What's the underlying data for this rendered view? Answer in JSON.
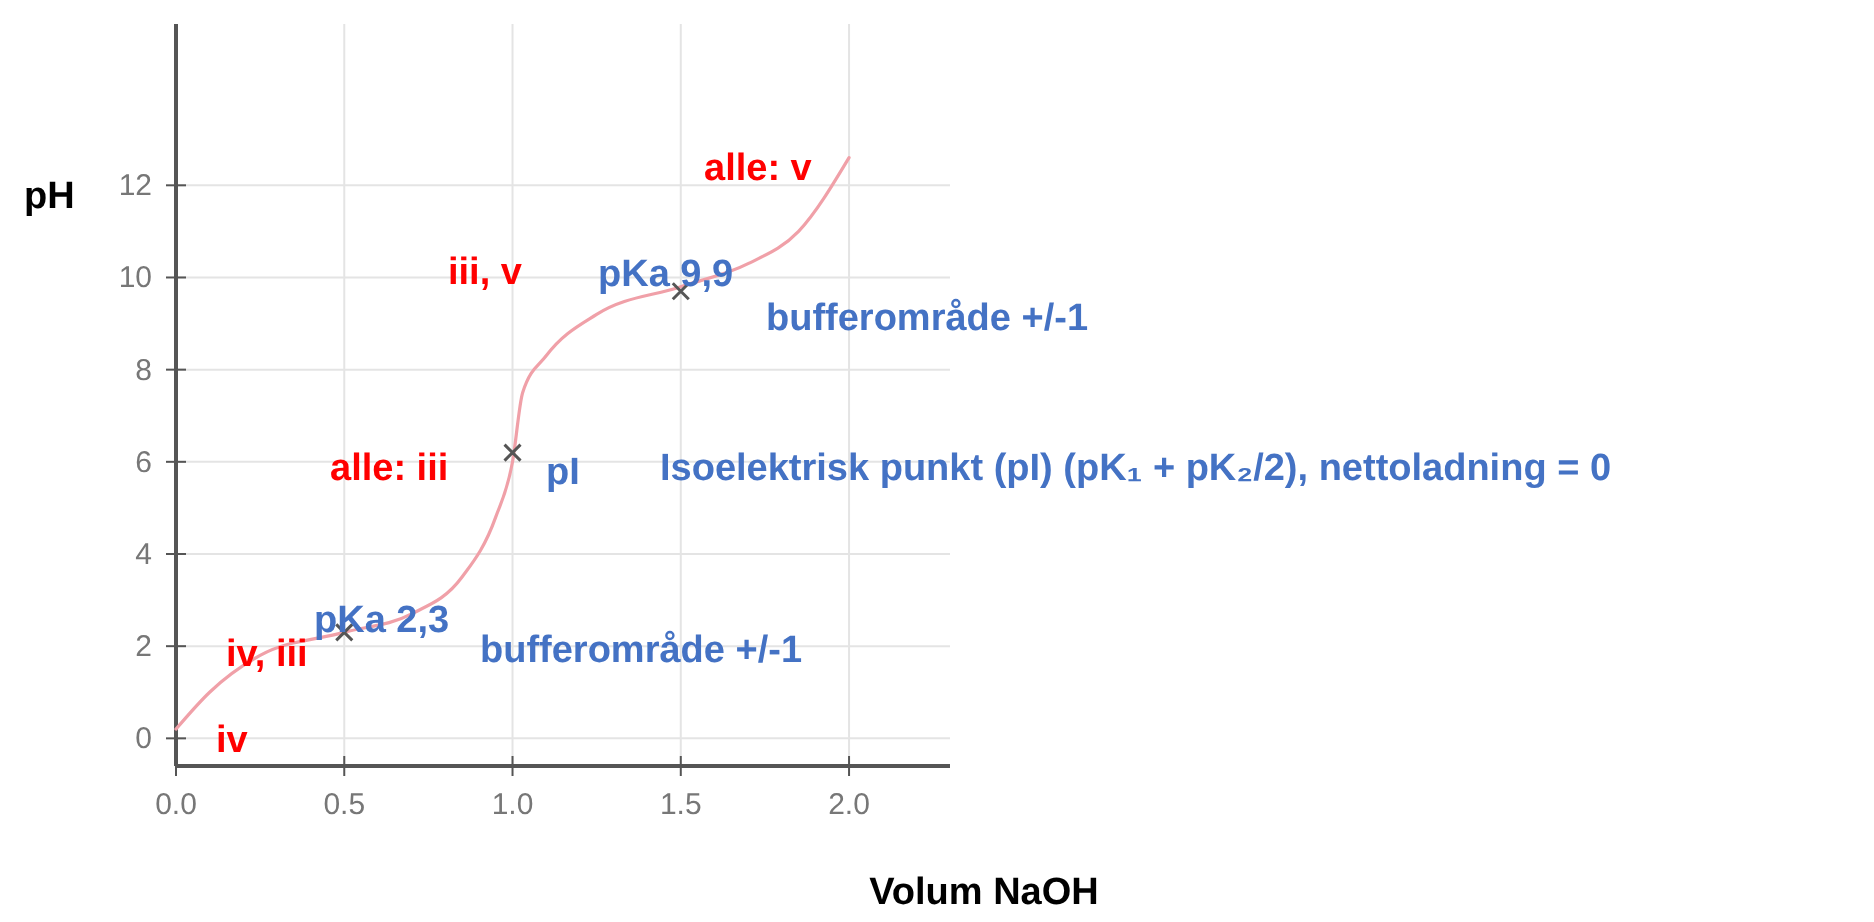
{
  "chart_data": {
    "type": "line",
    "xlabel": "Volum NaOH",
    "ylabel": "pH",
    "x": [
      0,
      0.1,
      0.25,
      0.5,
      0.7,
      0.85,
      0.95,
      1.0,
      1.03,
      1.1,
      1.25,
      1.5,
      1.7,
      1.85,
      2.0
    ],
    "series": [
      {
        "color": "#f0a0a8",
        "values": [
          0.2,
          1,
          1.8,
          2.3,
          2.7,
          3.5,
          4.8,
          6,
          7.5,
          8.3,
          9.2,
          9.8,
          10.3,
          11,
          12.6
        ]
      },
      {
        "type": "scatter",
        "marker": "cross",
        "color": "#555555",
        "x": [
          0.5,
          1.0,
          1.5
        ],
        "values": [
          2.3,
          6.2,
          9.7
        ]
      }
    ],
    "xlim": [
      0,
      2.3
    ],
    "ylim": [
      -0.6,
      15.5
    ],
    "xticks": [
      {
        "value": 0,
        "label": "0.0"
      },
      {
        "value": 0.5,
        "label": "0.5"
      },
      {
        "value": 1,
        "label": "1.0"
      },
      {
        "value": 1.5,
        "label": "1.5"
      },
      {
        "value": 2,
        "label": "2.0"
      }
    ],
    "yticks": [
      0,
      2,
      4,
      6,
      8,
      10,
      12
    ],
    "grid": true,
    "annotations": [
      "alle: v",
      "iii, v",
      "pKa 9,9",
      "bufferområde +/-1",
      "alle: iii",
      "pI",
      "Isoelektrisk punkt (pI) (pK₁ + pK₂/2), nettoladning = 0",
      "pKa 2,3",
      "bufferområde +/-1",
      "iv, iii",
      "iv"
    ]
  }
}
